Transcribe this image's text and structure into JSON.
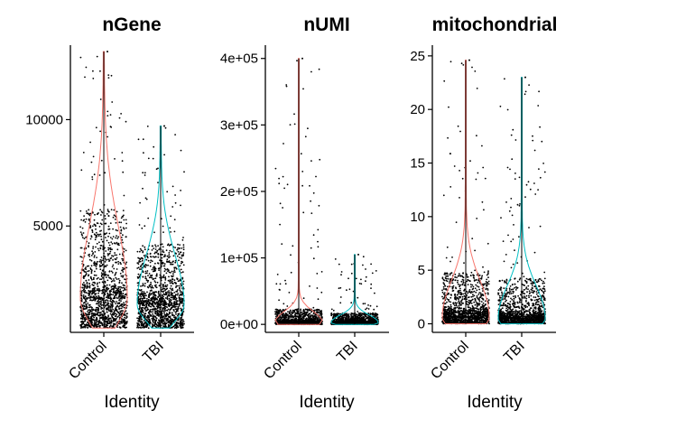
{
  "chart_data": [
    {
      "type": "violin",
      "title": "nGene",
      "xlabel": "Identity",
      "ylabel": "",
      "categories": [
        "Control",
        "TBI"
      ],
      "yticks": [
        5000,
        10000
      ],
      "ytick_labels": [
        "5000",
        "10000"
      ],
      "ylim": [
        0,
        13500
      ],
      "series": [
        {
          "name": "Control",
          "color": "#F8766D",
          "min": 200,
          "max": 13200,
          "median": 1600,
          "q3": 3500
        },
        {
          "name": "TBI",
          "color": "#00BFC4",
          "min": 200,
          "max": 9700,
          "median": 1300,
          "q3": 2600
        }
      ]
    },
    {
      "type": "violin",
      "title": "nUMI",
      "xlabel": "Identity",
      "ylabel": "",
      "categories": [
        "Control",
        "TBI"
      ],
      "yticks": [
        0,
        100000,
        200000,
        300000,
        400000
      ],
      "ytick_labels": [
        "0e+00",
        "1e+05",
        "2e+05",
        "3e+05",
        "4e+05"
      ],
      "ylim": [
        -12000,
        420000
      ],
      "series": [
        {
          "name": "Control",
          "color": "#F8766D",
          "min": 0,
          "max": 400000,
          "median": 3000,
          "q3": 12000
        },
        {
          "name": "TBI",
          "color": "#00BFC4",
          "min": 0,
          "max": 105000,
          "median": 2500,
          "q3": 9000
        }
      ]
    },
    {
      "type": "violin",
      "title": "mitochondrial",
      "xlabel": "Identity",
      "ylabel": "",
      "categories": [
        "Control",
        "TBI"
      ],
      "yticks": [
        0,
        5,
        10,
        15,
        20,
        25
      ],
      "ytick_labels": [
        "0",
        "5",
        "10",
        "15",
        "20",
        "25"
      ],
      "ylim": [
        -0.8,
        26
      ],
      "series": [
        {
          "name": "Control",
          "color": "#F8766D",
          "min": 0,
          "max": 24.6,
          "median": 0.6,
          "q3": 2.5
        },
        {
          "name": "TBI",
          "color": "#00BFC4",
          "min": 0,
          "max": 23,
          "median": 0.5,
          "q3": 2.2
        }
      ]
    }
  ]
}
